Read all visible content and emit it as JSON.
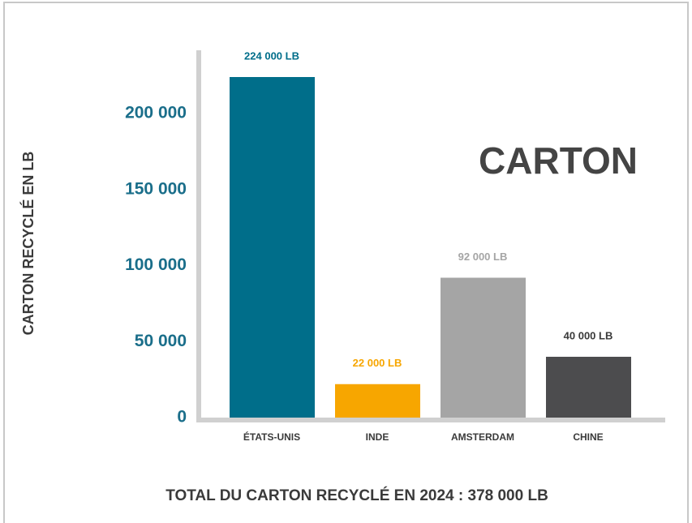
{
  "chart_data": {
    "type": "bar",
    "title": "CARTON",
    "y_label": "CARTON RECYCLÉ EN LB",
    "footer": "TOTAL DU CARTON RECYCLÉ EN 2024 : 378 000 LB",
    "categories": [
      "ÉTATS-UNIS",
      "INDE",
      "AMSTERDAM",
      "CHINE"
    ],
    "values": [
      224000,
      22000,
      92000,
      40000
    ],
    "value_labels": [
      "224 000 LB",
      "22 000 LB",
      "92 000 LB",
      "40 000 LB"
    ],
    "colors": [
      "#006e8a",
      "#f7a600",
      "#a5a5a5",
      "#4c4c4e"
    ],
    "label_colors": [
      "#006e8a",
      "#f7a600",
      "#a5a5a5",
      "#3a3a3a"
    ],
    "ylim": [
      0,
      240000
    ],
    "yticks": [
      0,
      {
        "value": 50000,
        "label": "50 000"
      },
      {
        "value": 100000,
        "label": "100 000"
      },
      {
        "value": 150000,
        "label": "150 000"
      },
      {
        "value": 200000,
        "label": "200 000"
      }
    ],
    "grid": false
  }
}
